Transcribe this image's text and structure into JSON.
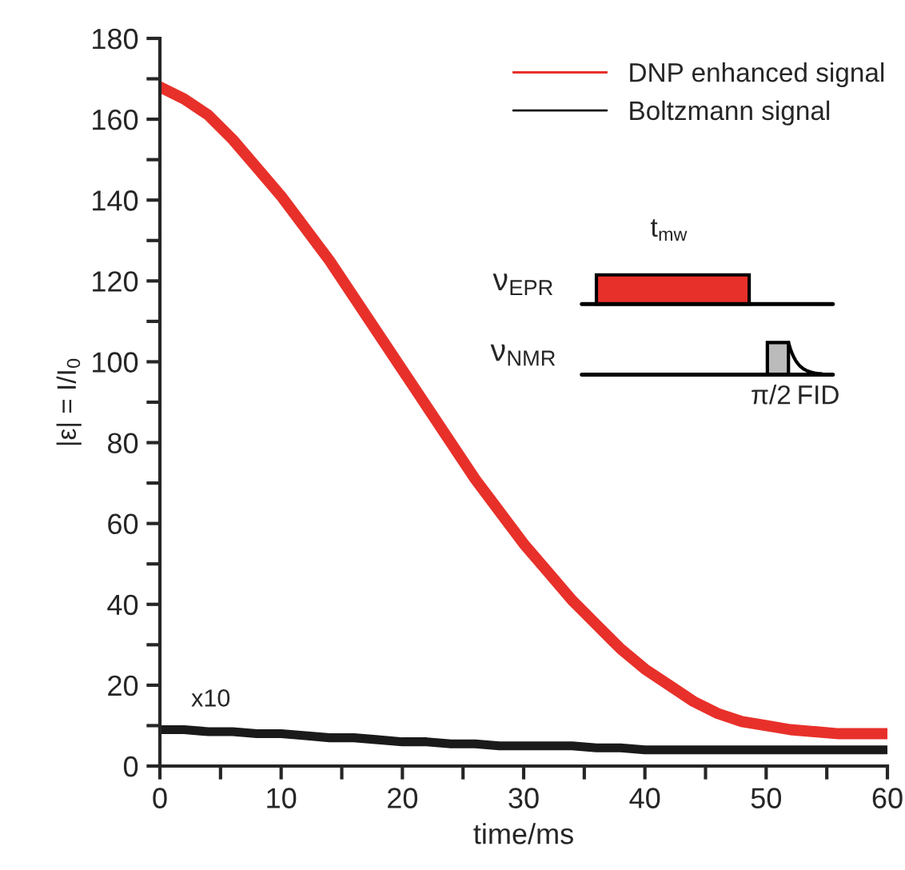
{
  "chart_data": {
    "type": "line",
    "xlabel": "time/ms",
    "ylabel": "|ε| = I/I$_{0}$",
    "x": [
      0,
      2,
      4,
      6,
      8,
      10,
      12,
      14,
      16,
      18,
      20,
      22,
      24,
      26,
      28,
      30,
      32,
      34,
      36,
      38,
      40,
      42,
      44,
      46,
      48,
      50,
      52,
      54,
      56,
      58,
      60
    ],
    "series": [
      {
        "name": "DNP enhanced signal",
        "color": "#e8302a",
        "values": [
          168,
          165,
          161,
          155,
          148,
          141,
          133,
          125,
          116,
          107,
          98,
          89,
          80,
          71,
          63,
          55,
          48,
          41,
          35,
          29,
          24,
          20,
          16,
          13,
          11,
          10,
          9,
          8.5,
          8,
          8,
          8
        ]
      },
      {
        "name": "Boltzmann signal",
        "color": "#1a1a1a",
        "values": [
          9,
          9,
          8.5,
          8.5,
          8,
          8,
          7.5,
          7,
          7,
          6.5,
          6,
          6,
          5.5,
          5.5,
          5,
          5,
          5,
          5,
          4.5,
          4.5,
          4,
          4,
          4,
          4,
          4,
          4,
          4,
          4,
          4,
          4,
          4
        ]
      }
    ],
    "xlim": [
      0,
      60
    ],
    "ylim": [
      0,
      180
    ],
    "xticks": [
      0,
      {
        "value": 5,
        "label": null
      },
      10,
      {
        "value": 15,
        "label": null
      },
      20,
      {
        "value": 25,
        "label": null
      },
      30,
      {
        "value": 35,
        "label": null
      },
      40,
      {
        "value": 45,
        "label": null
      },
      50,
      {
        "value": 55,
        "label": null
      },
      60
    ],
    "yticks": [
      0,
      {
        "value": 10,
        "label": null
      },
      20,
      {
        "value": 30,
        "label": null
      },
      40,
      {
        "value": 50,
        "label": null
      },
      60,
      {
        "value": 70,
        "label": null
      },
      80,
      {
        "value": 90,
        "label": null
      },
      100,
      {
        "value": 110,
        "label": null
      },
      120,
      {
        "value": 130,
        "label": null
      },
      140,
      {
        "value": 150,
        "label": null
      },
      160,
      {
        "value": 170,
        "label": null
      },
      180
    ],
    "annotations": [
      "x10",
      "ν$_{EPR}$",
      "t$_{mw}$",
      "ν$_{NMR}$",
      "π/2",
      "FID"
    ],
    "legend": "top right",
    "grid": false
  }
}
